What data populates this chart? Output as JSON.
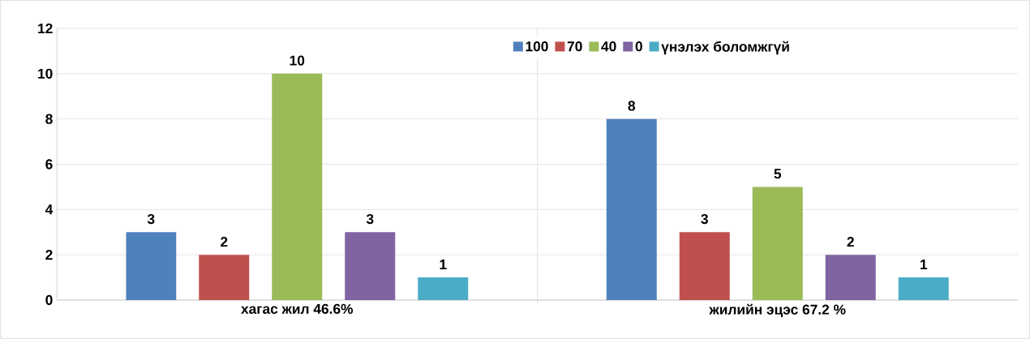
{
  "chart_data": {
    "type": "bar",
    "categories": [
      "хагас жил  46.6%",
      "жилийн эцэс   67.2 %"
    ],
    "series": [
      {
        "name": "100",
        "color": "#4f81bd",
        "values": [
          3,
          8
        ]
      },
      {
        "name": "70",
        "color": "#c0504d",
        "values": [
          2,
          3
        ]
      },
      {
        "name": "40",
        "color": "#9bbb59",
        "values": [
          10,
          5
        ]
      },
      {
        "name": "0",
        "color": "#8064a2",
        "values": [
          3,
          2
        ]
      },
      {
        "name": "үнэлэх боломжгүй",
        "color": "#4bacc6",
        "values": [
          1,
          1
        ]
      }
    ],
    "ylim": [
      0,
      12
    ],
    "yticks": [
      0,
      2,
      4,
      6,
      8,
      10,
      12
    ],
    "grid": true,
    "legend": "top",
    "data_labels": true
  }
}
